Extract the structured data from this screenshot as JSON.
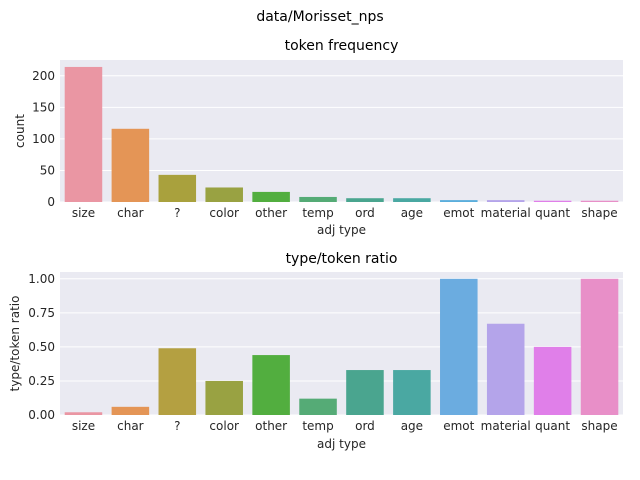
{
  "figure": {
    "suptitle": "data/Morisset_nps"
  },
  "chart_data": [
    {
      "type": "bar",
      "title": "token frequency",
      "xlabel": "adj type",
      "ylabel": "count",
      "categories": [
        "size",
        "char",
        "?",
        "color",
        "other",
        "temp",
        "ord",
        "age",
        "emot",
        "material",
        "quant",
        "shape"
      ],
      "values": [
        214,
        116,
        43,
        23,
        16,
        8,
        6,
        6,
        3,
        3,
        2,
        2
      ],
      "ylim": [
        0,
        225
      ],
      "yticks": [
        0,
        50,
        100,
        150,
        200
      ],
      "colors": [
        "#ea96a3",
        "#e49556",
        "#a9a13d",
        "#99a242",
        "#52ae3f",
        "#55ab76",
        "#4aa58f",
        "#4aa8a2",
        "#5aaedc",
        "#b4a4ea",
        "#e07fe9",
        "#e88fc8"
      ],
      "grid": true
    },
    {
      "type": "bar",
      "title": "type/token ratio",
      "xlabel": "adj type",
      "ylabel": "type/token ratio",
      "categories": [
        "size",
        "char",
        "?",
        "color",
        "other",
        "temp",
        "ord",
        "age",
        "emot",
        "material",
        "quant",
        "shape"
      ],
      "values": [
        0.02,
        0.06,
        0.49,
        0.25,
        0.44,
        0.12,
        0.33,
        0.33,
        1.0,
        0.67,
        0.5,
        1.0
      ],
      "ylim": [
        0,
        1.05
      ],
      "yticks": [
        0.0,
        0.25,
        0.5,
        0.75,
        1.0
      ],
      "ytick_labels": [
        "0.00",
        "0.25",
        "0.50",
        "0.75",
        "1.00"
      ],
      "colors": [
        "#ea96a3",
        "#e49556",
        "#b4a041",
        "#99a242",
        "#52ae3f",
        "#55ab76",
        "#4aa58f",
        "#4aa8a2",
        "#6bace0",
        "#b4a4ea",
        "#e07fe9",
        "#e88fc8"
      ],
      "grid": true
    }
  ]
}
